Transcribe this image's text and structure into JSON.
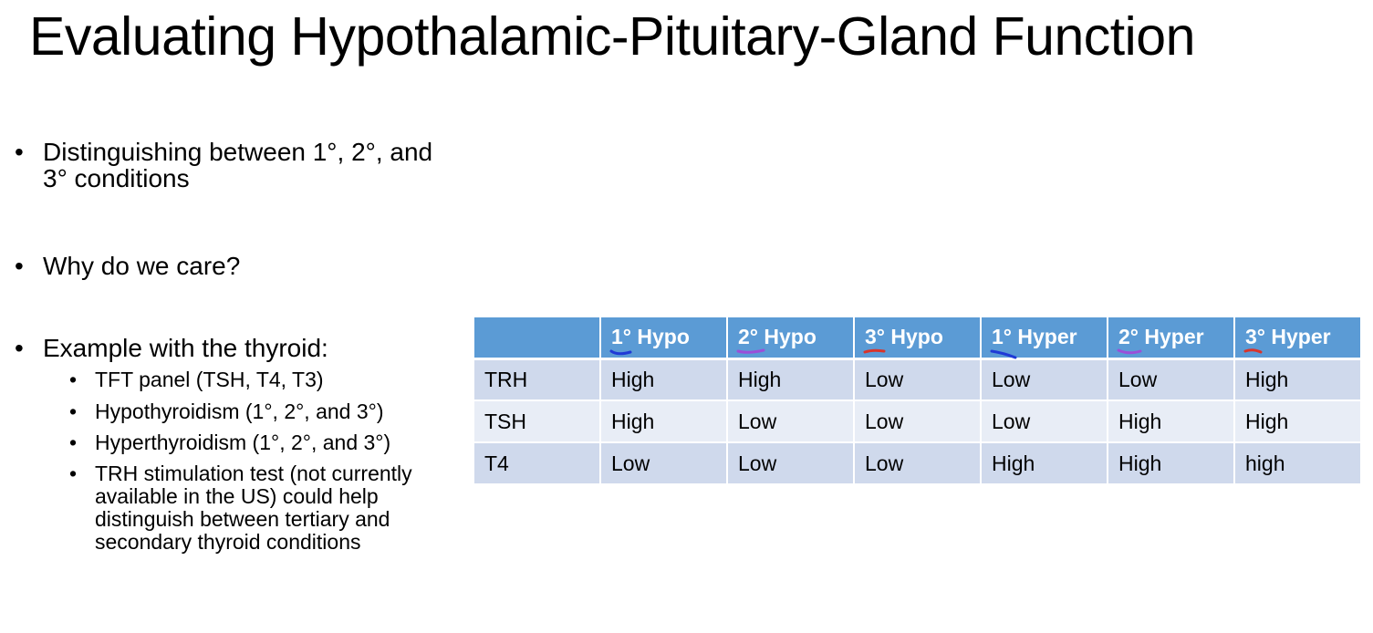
{
  "slide": {
    "title": "Evaluating Hypothalamic-Pituitary-Gland Function",
    "bullets": [
      {
        "text": "Distinguishing between 1°, 2°, and 3° conditions"
      },
      {
        "text": "Why do we care?"
      },
      {
        "text": "Example with the thyroid:"
      }
    ],
    "sub_bullets": [
      "TFT panel (TSH, T4, T3)",
      "Hypothyroidism (1°, 2°, and 3°)",
      "Hyperthyroidism (1°, 2°, and 3°)",
      "TRH stimulation test (not currently available in the US) could help distinguish between tertiary and secondary thyroid conditions"
    ],
    "bullet_char": "•"
  },
  "table": {
    "corner": "",
    "headers": [
      "1° Hypo",
      "2° Hypo",
      "3° Hypo",
      "1° Hyper",
      "2° Hyper",
      "3° Hyper"
    ],
    "rows": [
      {
        "label": "TRH",
        "cells": [
          "High",
          "High",
          "Low",
          "Low",
          "Low",
          "High"
        ]
      },
      {
        "label": "TSH",
        "cells": [
          "High",
          "Low",
          "Low",
          "Low",
          "High",
          "High"
        ]
      },
      {
        "label": "T4",
        "cells": [
          "Low",
          "Low",
          "Low",
          "High",
          "High",
          "high"
        ]
      }
    ]
  },
  "colors": {
    "header_fill": "#5b9bd5",
    "row_fill_dark": "#cfd9ec",
    "row_fill_light": "#e8edf6",
    "ink_blue": "#1f3ad6",
    "ink_purple": "#9b4fd9",
    "ink_red": "#d9342b"
  }
}
